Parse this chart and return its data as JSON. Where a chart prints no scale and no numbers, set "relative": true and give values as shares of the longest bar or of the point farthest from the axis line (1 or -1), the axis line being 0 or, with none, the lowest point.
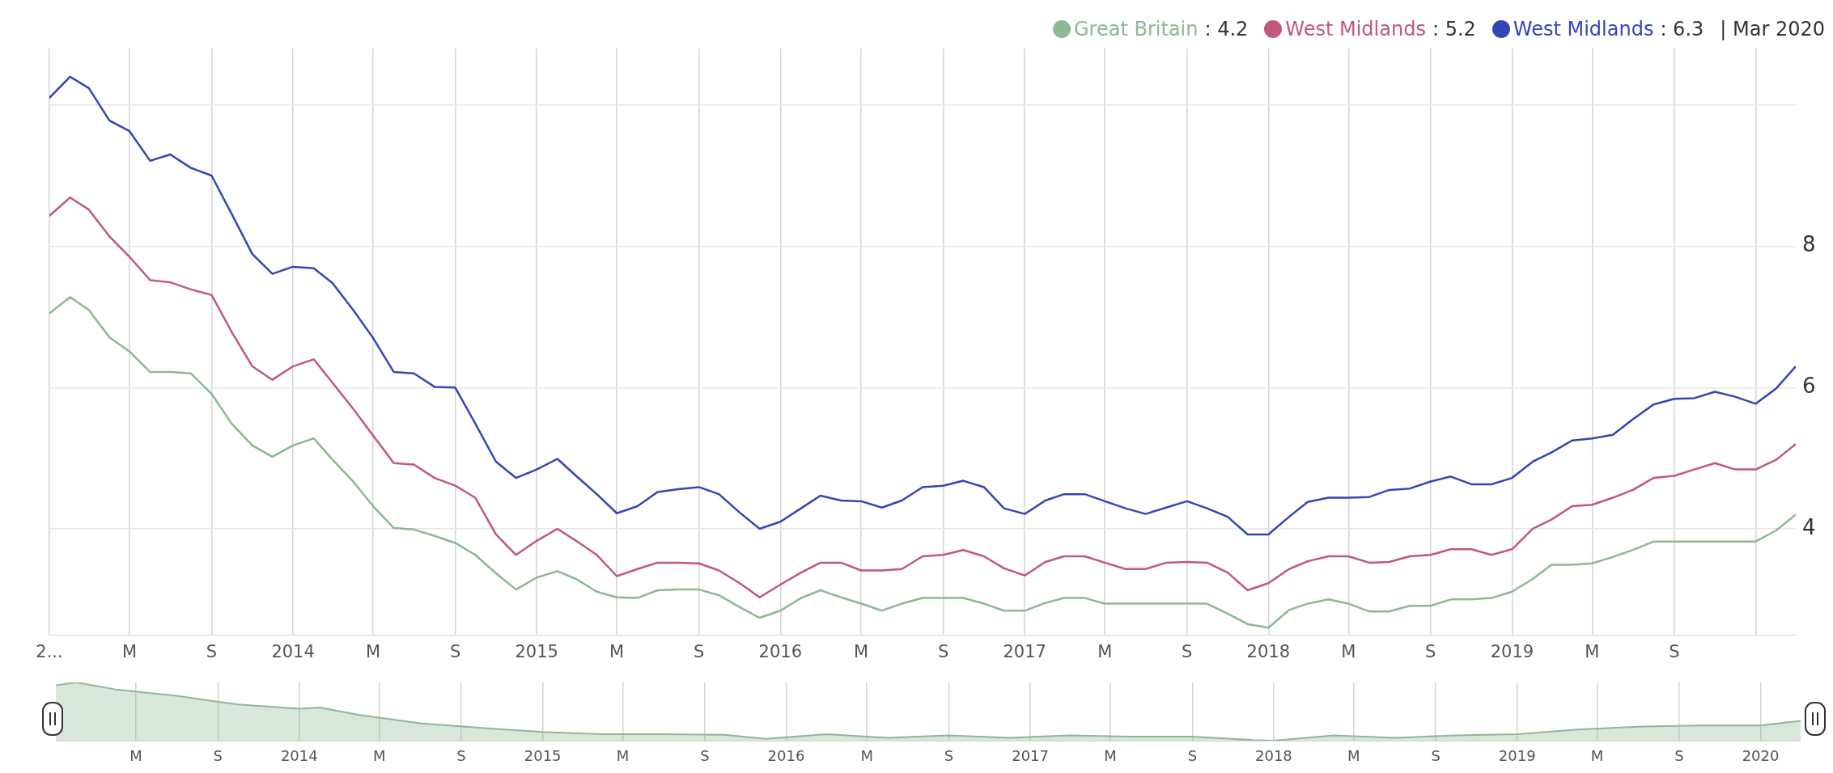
{
  "chart_data": [
    {
      "type": "line",
      "legend": "top right",
      "grid": true,
      "annotations": [
        ": 4.2",
        ": 5.2",
        ": 6.3",
        "| Mar 2020"
      ],
      "x": [
        "2013-01",
        "2013-02",
        "2013-03",
        "2013-04",
        "2013-05",
        "2013-06",
        "2013-07",
        "2013-08",
        "2013-09",
        "2013-10",
        "2013-11",
        "2013-12",
        "2014-01",
        "2014-02",
        "2014-03",
        "2014-04",
        "2014-05",
        "2014-06",
        "2014-07",
        "2014-08",
        "2014-09",
        "2014-10",
        "2014-11",
        "2014-12",
        "2015-01",
        "2015-02",
        "2015-03",
        "2015-04",
        "2015-05",
        "2015-06",
        "2015-07",
        "2015-08",
        "2015-09",
        "2015-10",
        "2015-11",
        "2015-12",
        "2016-01",
        "2016-02",
        "2016-03",
        "2016-04",
        "2016-05",
        "2016-06",
        "2016-07",
        "2016-08",
        "2016-09",
        "2016-10",
        "2016-11",
        "2016-12",
        "2017-01",
        "2017-02",
        "2017-03",
        "2017-04",
        "2017-05",
        "2017-06",
        "2017-07",
        "2017-08",
        "2017-09",
        "2017-10",
        "2017-11",
        "2017-12",
        "2018-01",
        "2018-02",
        "2018-03",
        "2018-04",
        "2018-05",
        "2018-06",
        "2018-07",
        "2018-08",
        "2018-09",
        "2018-10",
        "2018-11",
        "2018-12",
        "2019-01",
        "2019-02",
        "2019-03",
        "2019-04",
        "2019-05",
        "2019-06",
        "2019-07",
        "2019-08",
        "2019-09",
        "2019-10",
        "2019-11",
        "2019-12",
        "2020-01",
        "2020-02",
        "2020-03"
      ],
      "series": [
        {
          "name": "Great Britain",
          "color": "#8db894",
          "values": [
            7.05,
            7.28,
            7.1,
            6.71,
            6.51,
            6.22,
            6.22,
            6.2,
            5.91,
            5.49,
            5.18,
            5.02,
            5.18,
            5.28,
            4.98,
            4.67,
            4.32,
            4.01,
            3.99,
            3.9,
            3.8,
            3.63,
            3.37,
            3.14,
            3.31,
            3.4,
            3.29,
            3.11,
            3.03,
            3.02,
            3.13,
            3.14,
            3.14,
            3.06,
            2.89,
            2.74,
            2.84,
            3.02,
            3.13,
            3.03,
            2.94,
            2.84,
            2.94,
            3.02,
            3.02,
            3.02,
            2.94,
            2.84,
            2.84,
            2.95,
            3.02,
            3.02,
            2.94,
            2.94,
            2.94,
            2.94,
            2.94,
            2.94,
            2.8,
            2.65,
            2.6,
            2.85,
            2.94,
            3.0,
            2.94,
            2.83,
            2.83,
            2.91,
            2.91,
            3.0,
            3.0,
            3.02,
            3.11,
            3.29,
            3.49,
            3.49,
            3.51,
            3.6,
            3.7,
            3.82,
            3.82,
            3.82,
            3.82,
            3.82,
            3.82,
            3.98,
            4.2
          ]
        },
        {
          "name": "West Midlands",
          "color": "#c2577a",
          "values": [
            8.43,
            8.69,
            8.52,
            8.14,
            7.85,
            7.52,
            7.49,
            7.39,
            7.31,
            6.79,
            6.3,
            6.11,
            6.3,
            6.4,
            6.07,
            5.7,
            5.32,
            4.93,
            4.91,
            4.72,
            4.61,
            4.44,
            3.92,
            3.63,
            3.83,
            4.0,
            3.83,
            3.63,
            3.33,
            3.43,
            3.52,
            3.52,
            3.51,
            3.41,
            3.23,
            3.03,
            3.21,
            3.38,
            3.52,
            3.52,
            3.41,
            3.41,
            3.43,
            3.61,
            3.63,
            3.7,
            3.61,
            3.44,
            3.34,
            3.53,
            3.61,
            3.61,
            3.52,
            3.43,
            3.43,
            3.52,
            3.53,
            3.52,
            3.38,
            3.13,
            3.23,
            3.43,
            3.54,
            3.61,
            3.61,
            3.52,
            3.53,
            3.61,
            3.63,
            3.71,
            3.71,
            3.63,
            3.71,
            4.0,
            4.13,
            4.32,
            4.34,
            4.44,
            4.55,
            4.72,
            4.75,
            4.84,
            4.93,
            4.84,
            4.84,
            4.98,
            5.2
          ]
        },
        {
          "name": "West Midlands",
          "color": "#3446b4",
          "values": [
            10.1,
            10.4,
            10.24,
            9.78,
            9.63,
            9.21,
            9.3,
            9.11,
            9.0,
            8.46,
            7.89,
            7.61,
            7.71,
            7.69,
            7.48,
            7.1,
            6.7,
            6.22,
            6.2,
            6.01,
            6.0,
            5.49,
            4.95,
            4.72,
            4.84,
            4.99,
            4.75,
            4.49,
            4.22,
            4.32,
            4.52,
            4.56,
            4.59,
            4.49,
            4.23,
            4.0,
            4.1,
            4.29,
            4.47,
            4.4,
            4.39,
            4.3,
            4.4,
            4.59,
            4.61,
            4.68,
            4.59,
            4.29,
            4.21,
            4.4,
            4.49,
            4.49,
            4.39,
            4.29,
            4.21,
            4.3,
            4.39,
            4.29,
            4.17,
            3.92,
            3.92,
            4.17,
            4.38,
            4.44,
            4.44,
            4.45,
            4.55,
            4.57,
            4.67,
            4.74,
            4.63,
            4.63,
            4.72,
            4.95,
            5.08,
            5.25,
            5.28,
            5.33,
            5.55,
            5.76,
            5.84,
            5.85,
            5.94,
            5.87,
            5.77,
            5.99,
            6.3
          ]
        }
      ],
      "xlim": [
        "2013-01",
        "2020-03"
      ],
      "xticks": [
        {
          "value": "2013-01",
          "label": "2..."
        },
        {
          "value": "2013-05",
          "label": "M"
        },
        {
          "value": "2013-09",
          "label": "S"
        },
        {
          "value": "2014-01",
          "label": "2014"
        },
        {
          "value": "2014-05",
          "label": "M"
        },
        {
          "value": "2014-09",
          "label": "S"
        },
        {
          "value": "2015-01",
          "label": "2015"
        },
        {
          "value": "2015-05",
          "label": "M"
        },
        {
          "value": "2015-09",
          "label": "S"
        },
        {
          "value": "2016-01",
          "label": "2016"
        },
        {
          "value": "2016-05",
          "label": "M"
        },
        {
          "value": "2016-09",
          "label": "S"
        },
        {
          "value": "2017-01",
          "label": "2017"
        },
        {
          "value": "2017-05",
          "label": "M"
        },
        {
          "value": "2017-09",
          "label": "S"
        },
        {
          "value": "2018-01",
          "label": "2018"
        },
        {
          "value": "2018-05",
          "label": "M"
        },
        {
          "value": "2018-09",
          "label": "S"
        },
        {
          "value": "2019-01",
          "label": "2019"
        },
        {
          "value": "2019-05",
          "label": "M"
        },
        {
          "value": "2019-09",
          "label": "S"
        },
        {
          "value": "2020-01",
          "label": null
        }
      ],
      "ylim": [
        2.5,
        10.8
      ],
      "yticks": [
        4,
        6,
        8,
        {
          "value": 10,
          "label": null
        }
      ]
    },
    {
      "type": "area",
      "relative": true,
      "tick_labels": "x",
      "grid": "x",
      "color": "#8db894",
      "x": [
        "2013-01",
        "2013-02",
        "2013-04",
        "2013-07",
        "2013-10",
        "2014-01",
        "2014-02",
        "2014-04",
        "2014-07",
        "2014-10",
        "2015-01",
        "2015-04",
        "2015-07",
        "2015-10",
        "2015-12",
        "2016-03",
        "2016-06",
        "2016-09",
        "2016-12",
        "2017-03",
        "2017-06",
        "2017-09",
        "2017-12",
        "2018-01",
        "2018-04",
        "2018-07",
        "2018-10",
        "2019-01",
        "2019-04",
        "2019-07",
        "2019-10",
        "2020-01",
        "2020-03"
      ],
      "values": [
        0.95,
        1,
        0.88,
        0.77,
        0.62,
        0.55,
        0.57,
        0.44,
        0.3,
        0.22,
        0.15,
        0.11,
        0.11,
        0.1,
        0.03,
        0.11,
        0.05,
        0.09,
        0.05,
        0.09,
        0.07,
        0.07,
        0.01,
        0,
        0.09,
        0.05,
        0.09,
        0.11,
        0.19,
        0.24,
        0.26,
        0.26,
        0.34
      ],
      "xlim": [
        "2013-01",
        "2020-03"
      ],
      "xticks": [
        {
          "value": "2013-05",
          "label": "M"
        },
        {
          "value": "2013-09",
          "label": "S"
        },
        {
          "value": "2014-01",
          "label": "2014"
        },
        {
          "value": "2014-05",
          "label": "M"
        },
        {
          "value": "2014-09",
          "label": "S"
        },
        {
          "value": "2015-01",
          "label": "2015"
        },
        {
          "value": "2015-05",
          "label": "M"
        },
        {
          "value": "2015-09",
          "label": "S"
        },
        {
          "value": "2016-01",
          "label": "2016"
        },
        {
          "value": "2016-05",
          "label": "M"
        },
        {
          "value": "2016-09",
          "label": "S"
        },
        {
          "value": "2017-01",
          "label": "2017"
        },
        {
          "value": "2017-05",
          "label": "M"
        },
        {
          "value": "2017-09",
          "label": "S"
        },
        {
          "value": "2018-01",
          "label": "2018"
        },
        {
          "value": "2018-05",
          "label": "M"
        },
        {
          "value": "2018-09",
          "label": "S"
        },
        {
          "value": "2019-01",
          "label": "2019"
        },
        {
          "value": "2019-05",
          "label": "M"
        },
        {
          "value": "2019-09",
          "label": "S"
        },
        {
          "value": "2020-01",
          "label": "2020"
        }
      ]
    }
  ]
}
